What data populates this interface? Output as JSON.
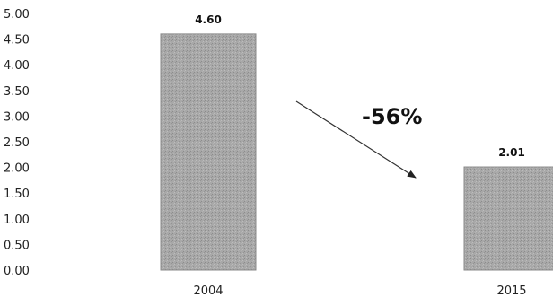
{
  "chart_data": {
    "type": "bar",
    "categories": [
      "2004",
      "2015"
    ],
    "values": [
      4.6,
      2.01
    ],
    "data_labels": [
      "4.60",
      "2.01"
    ],
    "ylim": [
      0,
      5
    ],
    "yticks": [
      "0.00",
      "0.50",
      "1.00",
      "1.50",
      "2.00",
      "2.50",
      "3.00",
      "3.50",
      "4.00",
      "4.50",
      "5.00"
    ],
    "grid": false,
    "annotation": {
      "text": "-56%"
    },
    "colors": {
      "bar": "#a8a8a8",
      "bar_edge": "#8a8a8a",
      "text": "#111111"
    }
  }
}
